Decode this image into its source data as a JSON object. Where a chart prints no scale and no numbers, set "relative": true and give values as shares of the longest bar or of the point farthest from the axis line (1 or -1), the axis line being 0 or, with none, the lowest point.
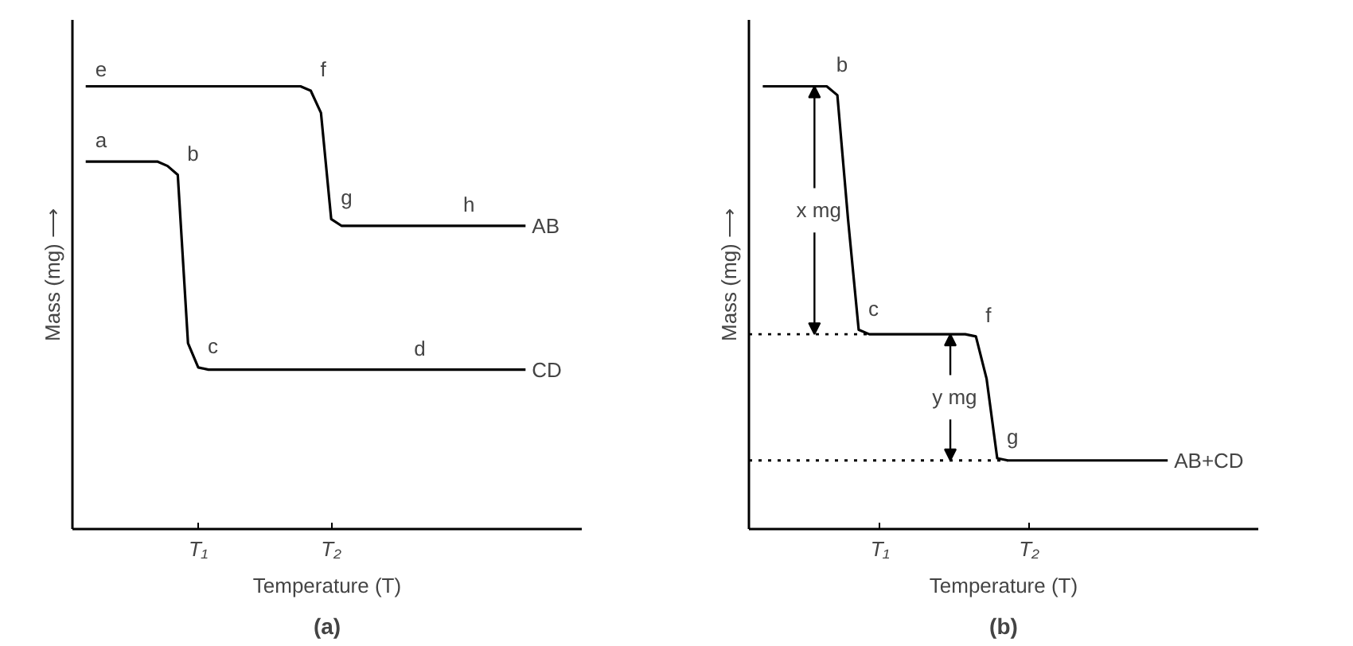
{
  "chart_data": [
    {
      "type": "line",
      "relative": true,
      "title": "(a)",
      "xlabel": "Temperature (T)",
      "ylabel": "Mass (mg) ⟶",
      "tick_labels": "x",
      "line_style": "solid",
      "categories": [
        null,
        null,
        null,
        null,
        null,
        null,
        null,
        null,
        null,
        null,
        null,
        "T₁",
        null,
        null,
        null,
        null,
        null,
        null,
        null,
        null,
        null,
        null,
        null,
        null,
        "T₂",
        null,
        null,
        null,
        null,
        null,
        null,
        null,
        null,
        null,
        null,
        null,
        null,
        null,
        null,
        null,
        null,
        null,
        null,
        null,
        null,
        null,
        null,
        null,
        null
      ],
      "series": [
        {
          "name": "AB",
          "color": "#000000",
          "values": [
            1.0,
            1.0,
            1.0,
            1.0,
            1.0,
            1.0,
            1.0,
            1.0,
            1.0,
            1.0,
            1.0,
            1.0,
            1.0,
            1.0,
            1.0,
            1.0,
            1.0,
            1.0,
            1.0,
            1.0,
            1.0,
            1.0,
            0.99,
            0.94,
            0.7,
            0.685,
            0.685,
            0.685,
            0.685,
            0.685,
            0.685,
            0.685,
            0.685,
            0.685,
            0.685,
            0.685,
            0.685,
            0.685,
            0.685,
            0.685,
            0.685,
            0.685,
            0.685,
            0.685,
            null,
            null,
            null,
            null,
            null
          ]
        },
        {
          "name": "CD",
          "color": "#000000",
          "values": [
            0.83,
            0.83,
            0.83,
            0.83,
            0.83,
            0.83,
            0.83,
            0.83,
            0.82,
            0.8,
            0.42,
            0.365,
            0.36,
            0.36,
            0.36,
            0.36,
            0.36,
            0.36,
            0.36,
            0.36,
            0.36,
            0.36,
            0.36,
            0.36,
            0.36,
            0.36,
            0.36,
            0.36,
            0.36,
            0.36,
            0.36,
            0.36,
            0.36,
            0.36,
            0.36,
            0.36,
            0.36,
            0.36,
            0.36,
            0.36,
            0.36,
            0.36,
            0.36,
            0.36,
            null,
            null,
            null,
            null,
            null
          ]
        }
      ],
      "annotations": [
        "e",
        "f",
        "g",
        "h",
        "a",
        "b",
        "c",
        "d"
      ]
    },
    {
      "type": "line",
      "relative": true,
      "title": "(b)",
      "xlabel": "Temperature (T)",
      "ylabel": "Mass (mg) ⟶",
      "tick_labels": "x",
      "line_style": "solid",
      "categories": [
        null,
        null,
        null,
        null,
        null,
        null,
        null,
        null,
        null,
        null,
        null,
        "T₁",
        null,
        null,
        null,
        null,
        null,
        null,
        null,
        null,
        null,
        null,
        null,
        null,
        null,
        "T₂",
        null,
        null,
        null,
        null,
        null,
        null,
        null,
        null,
        null,
        null,
        null,
        null,
        null,
        null,
        null,
        null,
        null,
        null,
        null,
        null,
        null
      ],
      "series": [
        {
          "name": "AB+CD",
          "color": "#000000",
          "values": [
            1.0,
            1.0,
            1.0,
            1.0,
            1.0,
            1.0,
            1.0,
            0.98,
            0.7,
            0.45,
            0.44,
            0.44,
            0.44,
            0.44,
            0.44,
            0.44,
            0.44,
            0.44,
            0.44,
            0.44,
            0.435,
            0.34,
            0.16,
            0.155,
            0.155,
            0.155,
            0.155,
            0.155,
            0.155,
            0.155,
            0.155,
            0.155,
            0.155,
            0.155,
            0.155,
            0.155,
            0.155,
            0.155,
            0.155,
            null,
            null,
            null,
            null,
            null,
            null,
            null,
            null
          ]
        }
      ],
      "ref_lines": [
        {
          "axis": "y",
          "value": 0.44,
          "line_style": "dotted",
          "color": "#000000"
        },
        {
          "axis": "y",
          "value": 0.155,
          "line_style": "dotted",
          "color": "#000000"
        }
      ],
      "annotations": [
        "b",
        "c",
        "f",
        "g",
        "x mg",
        "y mg"
      ]
    }
  ]
}
